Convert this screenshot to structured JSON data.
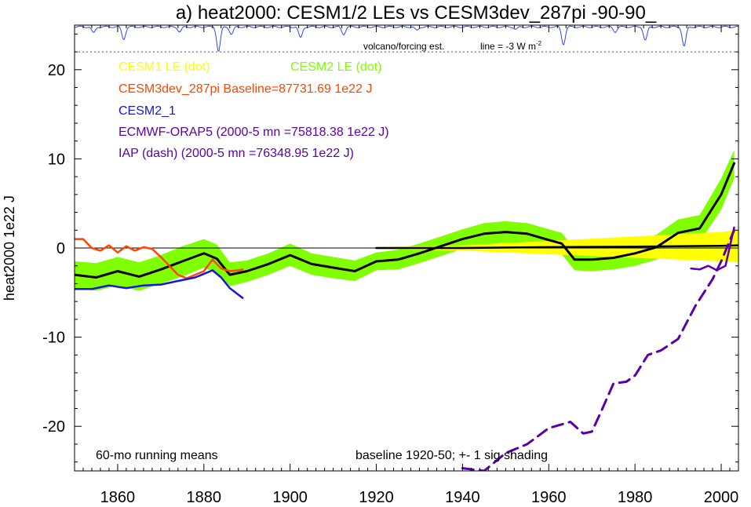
{
  "chart_data": {
    "type": "line",
    "title": "a) heat2000: CESM1/2 LEs vs CESM3dev_287pi -90-90_",
    "ylabel": "heat2000 1e22 J",
    "xlabel": "",
    "xlim": [
      1850,
      2004
    ],
    "ylim": [
      -25,
      25
    ],
    "x_ticks": [
      1860,
      1880,
      1900,
      1920,
      1940,
      1960,
      1980,
      2000
    ],
    "y_ticks": [
      20,
      10,
      0,
      -10,
      -20
    ],
    "x_tick_labels": [
      "1860",
      "1880",
      "1900",
      "1920",
      "1940",
      "1960",
      "1980",
      "2000"
    ],
    "y_tick_labels": [
      "20",
      "10",
      "0",
      "-10",
      "-20"
    ],
    "legend": [
      {
        "text": "CESM1 LE (dot)",
        "color": "#ffff00"
      },
      {
        "text": "CESM2 LE (dot)",
        "color": "#7fff00"
      },
      {
        "text": "CESM3dev_287pi Baseline=87731.69 1e22 J",
        "color": "#ff4500"
      },
      {
        "text": "CESM2_1",
        "color": "#1414e6"
      },
      {
        "text": "ECMWF-ORAP5 (2000-5 mn =75818.38 1e22 J)",
        "color": "#5a00aa"
      },
      {
        "text": "IAP (dash) (2000-5 mn =76348.95 1e22 J)",
        "color": "#5a00aa"
      }
    ],
    "annotations": {
      "volcano_label": "volcano/forcing est.",
      "line_label": "line = -3 W m",
      "line_label_sup": "-2",
      "bottom_left": "60-mo running means",
      "bottom_right": "baseline 1920-50; +- 1 sig shading"
    },
    "colors": {
      "cesm1_band": "#ffff00",
      "cesm2_band": "#7fff00",
      "cesm2_mean": "#000000",
      "cesm1_mean": "#000000",
      "cesm3": "#ff4500",
      "cesm2_1": "#1414e6",
      "orap5": "#5a00aa",
      "iap": "#5a00aa",
      "volcano": "#3344ee"
    },
    "series": [
      {
        "name": "CESM2 LE (dot)",
        "kind": "band",
        "x": [
          1850,
          1855,
          1860,
          1865,
          1870,
          1875,
          1880,
          1883,
          1886,
          1890,
          1895,
          1900,
          1905,
          1910,
          1915,
          1920,
          1925,
          1930,
          1935,
          1940,
          1945,
          1950,
          1955,
          1960,
          1963,
          1966,
          1970,
          1975,
          1980,
          1985,
          1990,
          1995,
          2000,
          2003
        ],
        "mean": [
          -3.0,
          -3.3,
          -2.6,
          -3.2,
          -2.4,
          -1.5,
          -0.6,
          -1.2,
          -3.0,
          -2.6,
          -1.8,
          -0.8,
          -1.8,
          -2.2,
          -2.6,
          -1.5,
          -1.3,
          -0.6,
          0.2,
          1.0,
          1.6,
          1.8,
          1.6,
          0.9,
          0.5,
          -1.3,
          -1.3,
          -1.1,
          -0.6,
          0.1,
          1.7,
          2.2,
          6.0,
          9.5
        ],
        "lower": [
          -4.5,
          -4.8,
          -4.2,
          -4.8,
          -4.0,
          -3.2,
          -2.2,
          -2.8,
          -4.3,
          -3.8,
          -3.0,
          -2.0,
          -3.0,
          -3.4,
          -3.7,
          -2.5,
          -2.4,
          -1.7,
          -0.9,
          -0.1,
          0.4,
          0.6,
          0.4,
          -0.3,
          -0.7,
          -2.5,
          -2.6,
          -2.4,
          -2.0,
          -1.3,
          0.2,
          0.7,
          4.3,
          7.8
        ],
        "upper": [
          -1.5,
          -1.7,
          -1.0,
          -1.6,
          -0.8,
          0.2,
          1.0,
          0.4,
          -1.6,
          -1.4,
          -0.6,
          0.5,
          -0.6,
          -1.0,
          -1.4,
          -0.5,
          -0.2,
          0.5,
          1.3,
          2.1,
          2.8,
          3.0,
          2.8,
          2.1,
          1.7,
          -0.1,
          0.0,
          0.2,
          0.8,
          1.5,
          3.2,
          3.7,
          7.8,
          11.0
        ]
      },
      {
        "name": "CESM1 LE (dot)",
        "kind": "band",
        "x": [
          1920,
          1940,
          1960,
          1980,
          2000,
          2004
        ],
        "mean": [
          0.0,
          0.0,
          0.1,
          0.15,
          0.25,
          0.3
        ],
        "lower": [
          -0.1,
          -0.3,
          -0.7,
          -1.1,
          -1.5,
          -1.6
        ],
        "upper": [
          0.1,
          0.3,
          0.8,
          1.3,
          1.8,
          2.0
        ]
      },
      {
        "name": "CESM3dev_287pi",
        "kind": "line",
        "x": [
          1850,
          1852,
          1854,
          1856,
          1858,
          1860,
          1862,
          1864,
          1866,
          1868,
          1870,
          1872,
          1874,
          1876,
          1878,
          1880,
          1882,
          1884,
          1886,
          1888,
          1889
        ],
        "y": [
          1.0,
          1.0,
          0.0,
          -0.3,
          0.3,
          -0.5,
          0.2,
          -0.3,
          0.1,
          -0.1,
          -1.0,
          -2.0,
          -3.0,
          -3.4,
          -3.0,
          -2.6,
          -1.3,
          -2.3,
          -2.6,
          -2.5,
          -2.4
        ]
      },
      {
        "name": "CESM2_1",
        "kind": "line",
        "x": [
          1850,
          1854,
          1858,
          1862,
          1866,
          1870,
          1874,
          1878,
          1882,
          1884,
          1886,
          1889
        ],
        "y": [
          -4.6,
          -4.6,
          -4.2,
          -4.5,
          -4.2,
          -4.1,
          -3.7,
          -3.3,
          -2.5,
          -3.3,
          -4.5,
          -5.6
        ]
      },
      {
        "name": "ECMWF-ORAP5",
        "kind": "line",
        "x": [
          1993,
          1995,
          1997,
          1999,
          2001,
          2003
        ],
        "y": [
          -2.3,
          -2.4,
          -2.0,
          -2.5,
          -2.0,
          2.3
        ]
      },
      {
        "name": "IAP (dash)",
        "kind": "dash",
        "x": [
          1940,
          1945,
          1950,
          1955,
          1960,
          1965,
          1968,
          1970,
          1972,
          1975,
          1978,
          1980,
          1983,
          1986,
          1990,
          1994,
          1998,
          2000,
          2003
        ],
        "y": [
          -24.7,
          -25.0,
          -23.0,
          -22.0,
          -20.2,
          -19.5,
          -20.8,
          -20.6,
          -18.5,
          -15.2,
          -15.0,
          -14.3,
          -12.0,
          -11.5,
          -10.2,
          -6.5,
          -3.5,
          -1.5,
          2.0
        ]
      }
    ],
    "volcano_dips": [
      {
        "year": 1854,
        "depth": 0.25
      },
      {
        "year": 1861,
        "depth": 0.5
      },
      {
        "year": 1874,
        "depth": 0.2
      },
      {
        "year": 1883,
        "depth": 1.0
      },
      {
        "year": 1886,
        "depth": 0.3
      },
      {
        "year": 1902,
        "depth": 0.45
      },
      {
        "year": 1912,
        "depth": 0.3
      },
      {
        "year": 1929,
        "depth": 0.15
      },
      {
        "year": 1952,
        "depth": 0.1
      },
      {
        "year": 1963,
        "depth": 0.7
      },
      {
        "year": 1975,
        "depth": 0.2
      },
      {
        "year": 1982,
        "depth": 0.55
      },
      {
        "year": 1991,
        "depth": 0.8
      }
    ]
  }
}
